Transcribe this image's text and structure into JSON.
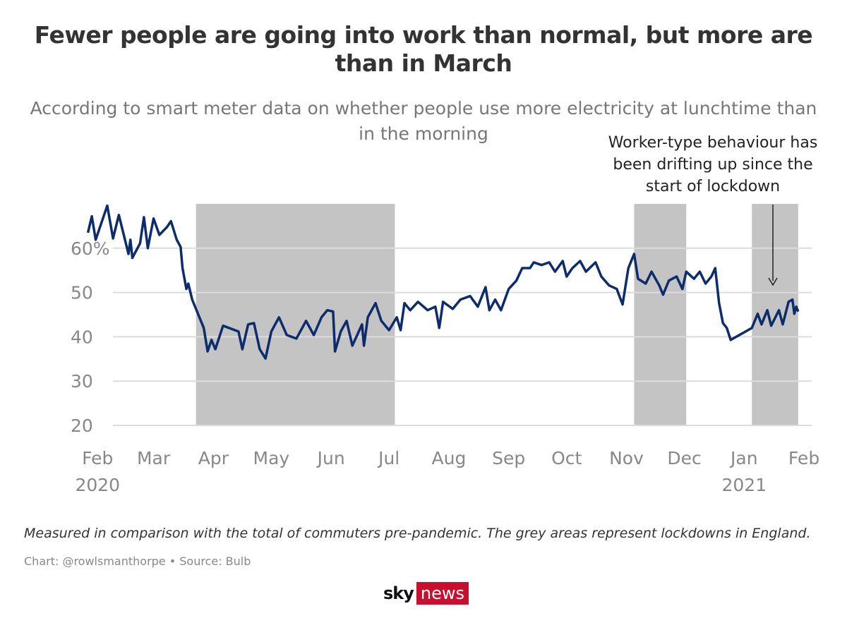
{
  "chart_data": {
    "type": "line",
    "title": "Fewer people are going into work than normal, but more are than in March",
    "subtitle": "According to smart meter data on whether people use more electricity at lunchtime than in the morning",
    "annotation": "Worker-type behaviour has been drifting up since the start of lockdown",
    "footnote": "Measured in comparison with the total of commuters pre-pandemic. The grey areas represent lockdowns in England.",
    "source": "Chart: @rowlsmanthorpe • Source: Bulb",
    "logo": [
      "sky",
      "news"
    ],
    "xlim": [
      "2020-01-18",
      "2021-02-05"
    ],
    "ylim": [
      20,
      70
    ],
    "yticks": [
      20,
      30,
      40,
      50,
      {
        "value": 60,
        "label": "60%"
      }
    ],
    "xticks": [
      {
        "value": "2020-02-01",
        "label": "Feb 2020"
      },
      {
        "value": "2020-03-01",
        "label": "Mar"
      },
      {
        "value": "2020-04-01",
        "label": "Apr"
      },
      {
        "value": "2020-05-01",
        "label": "May"
      },
      {
        "value": "2020-06-01",
        "label": "Jun"
      },
      {
        "value": "2020-07-01",
        "label": "Jul"
      },
      {
        "value": "2020-08-01",
        "label": "Aug"
      },
      {
        "value": "2020-09-01",
        "label": "Sep"
      },
      {
        "value": "2020-10-01",
        "label": "Oct"
      },
      {
        "value": "2020-11-01",
        "label": "Nov"
      },
      {
        "value": "2020-12-01",
        "label": "Dec"
      },
      {
        "value": "2021-01-01",
        "label": "Jan 2021"
      },
      {
        "value": "2021-02-01",
        "label": "Feb"
      }
    ],
    "grid": true,
    "lockdowns": [
      [
        "2020-03-23",
        "2020-07-04"
      ],
      [
        "2020-11-05",
        "2020-12-02"
      ],
      [
        "2021-01-05",
        "2021-01-29"
      ]
    ],
    "lockdown_color": "#c4c4c4",
    "x": [
      "2020-01-27",
      "2020-01-29",
      "2020-01-31",
      "2020-02-06",
      "2020-02-09",
      "2020-02-12",
      "2020-02-17",
      "2020-02-18",
      "2020-02-19",
      "2020-02-23",
      "2020-02-25",
      "2020-02-27",
      "2020-03-01",
      "2020-03-04",
      "2020-03-08",
      "2020-03-10",
      "2020-03-13",
      "2020-03-15",
      "2020-03-16",
      "2020-03-18",
      "2020-03-19",
      "2020-03-21",
      "2020-03-24",
      "2020-03-27",
      "2020-03-29",
      "2020-03-31",
      "2020-04-02",
      "2020-04-06",
      "2020-04-14",
      "2020-04-16",
      "2020-04-19",
      "2020-04-22",
      "2020-04-25",
      "2020-04-28",
      "2020-05-01",
      "2020-05-05",
      "2020-05-09",
      "2020-05-14",
      "2020-05-19",
      "2020-05-23",
      "2020-05-27",
      "2020-05-30",
      "2020-06-02",
      "2020-06-03",
      "2020-06-06",
      "2020-06-09",
      "2020-06-12",
      "2020-06-17",
      "2020-06-18",
      "2020-06-20",
      "2020-06-24",
      "2020-06-27",
      "2020-07-01",
      "2020-07-05",
      "2020-07-07",
      "2020-07-09",
      "2020-07-12",
      "2020-07-16",
      "2020-07-21",
      "2020-07-25",
      "2020-07-27",
      "2020-07-29",
      "2020-08-03",
      "2020-08-07",
      "2020-08-12",
      "2020-08-16",
      "2020-08-20",
      "2020-08-22",
      "2020-08-25",
      "2020-08-28",
      "2020-09-01",
      "2020-09-05",
      "2020-09-08",
      "2020-09-12",
      "2020-09-14",
      "2020-09-18",
      "2020-09-22",
      "2020-09-25",
      "2020-09-29",
      "2020-10-01",
      "2020-10-04",
      "2020-10-08",
      "2020-10-11",
      "2020-10-16",
      "2020-10-19",
      "2020-10-23",
      "2020-10-27",
      "2020-10-30",
      "2020-11-02",
      "2020-11-05",
      "2020-11-07",
      "2020-11-11",
      "2020-11-14",
      "2020-11-18",
      "2020-11-20",
      "2020-11-23",
      "2020-11-27",
      "2020-11-30",
      "2020-12-02",
      "2020-12-06",
      "2020-12-09",
      "2020-12-12",
      "2020-12-15",
      "2020-12-17",
      "2020-12-19",
      "2020-12-21",
      "2020-12-23",
      "2020-12-25",
      "2021-01-05",
      "2021-01-08",
      "2021-01-10",
      "2021-01-13",
      "2021-01-15",
      "2021-01-19",
      "2021-01-21",
      "2021-01-24",
      "2021-01-26",
      "2021-01-27",
      "2021-01-28",
      "2021-01-29"
    ],
    "series": [
      {
        "name": "Worker-type behaviour",
        "color": "#0d2c6c",
        "values": [
          63.5,
          67.2,
          61.9,
          69.6,
          62.2,
          67.5,
          58.7,
          61.9,
          57.8,
          61.1,
          67.0,
          60.0,
          66.7,
          63.0,
          64.8,
          66.1,
          61.9,
          60.3,
          55.5,
          50.8,
          52.0,
          48.4,
          45.2,
          42.0,
          36.7,
          39.3,
          37.2,
          42.5,
          41.2,
          37.2,
          42.8,
          43.1,
          37.2,
          35.1,
          41.2,
          44.4,
          40.4,
          39.6,
          43.6,
          40.4,
          44.4,
          46.0,
          45.7,
          36.7,
          41.2,
          43.6,
          38.0,
          42.8,
          38.0,
          44.4,
          47.6,
          43.6,
          41.5,
          44.4,
          41.5,
          47.6,
          46.0,
          47.9,
          46.0,
          46.8,
          42.0,
          47.9,
          46.3,
          48.4,
          49.2,
          46.8,
          51.2,
          46.0,
          48.4,
          46.0,
          50.8,
          52.7,
          55.5,
          55.5,
          56.8,
          56.2,
          56.8,
          54.7,
          57.1,
          53.6,
          55.5,
          57.1,
          54.7,
          56.8,
          53.6,
          51.6,
          50.8,
          47.3,
          55.5,
          58.7,
          53.1,
          52.0,
          54.7,
          51.6,
          49.5,
          52.7,
          53.6,
          50.8,
          54.7,
          53.1,
          54.7,
          52.0,
          53.6,
          55.5,
          47.6,
          43.1,
          42.0,
          39.3,
          42.0,
          45.2,
          42.8,
          46.0,
          42.5,
          46.0,
          42.8,
          47.9,
          48.4,
          45.2,
          46.8,
          45.7
        ]
      }
    ]
  }
}
